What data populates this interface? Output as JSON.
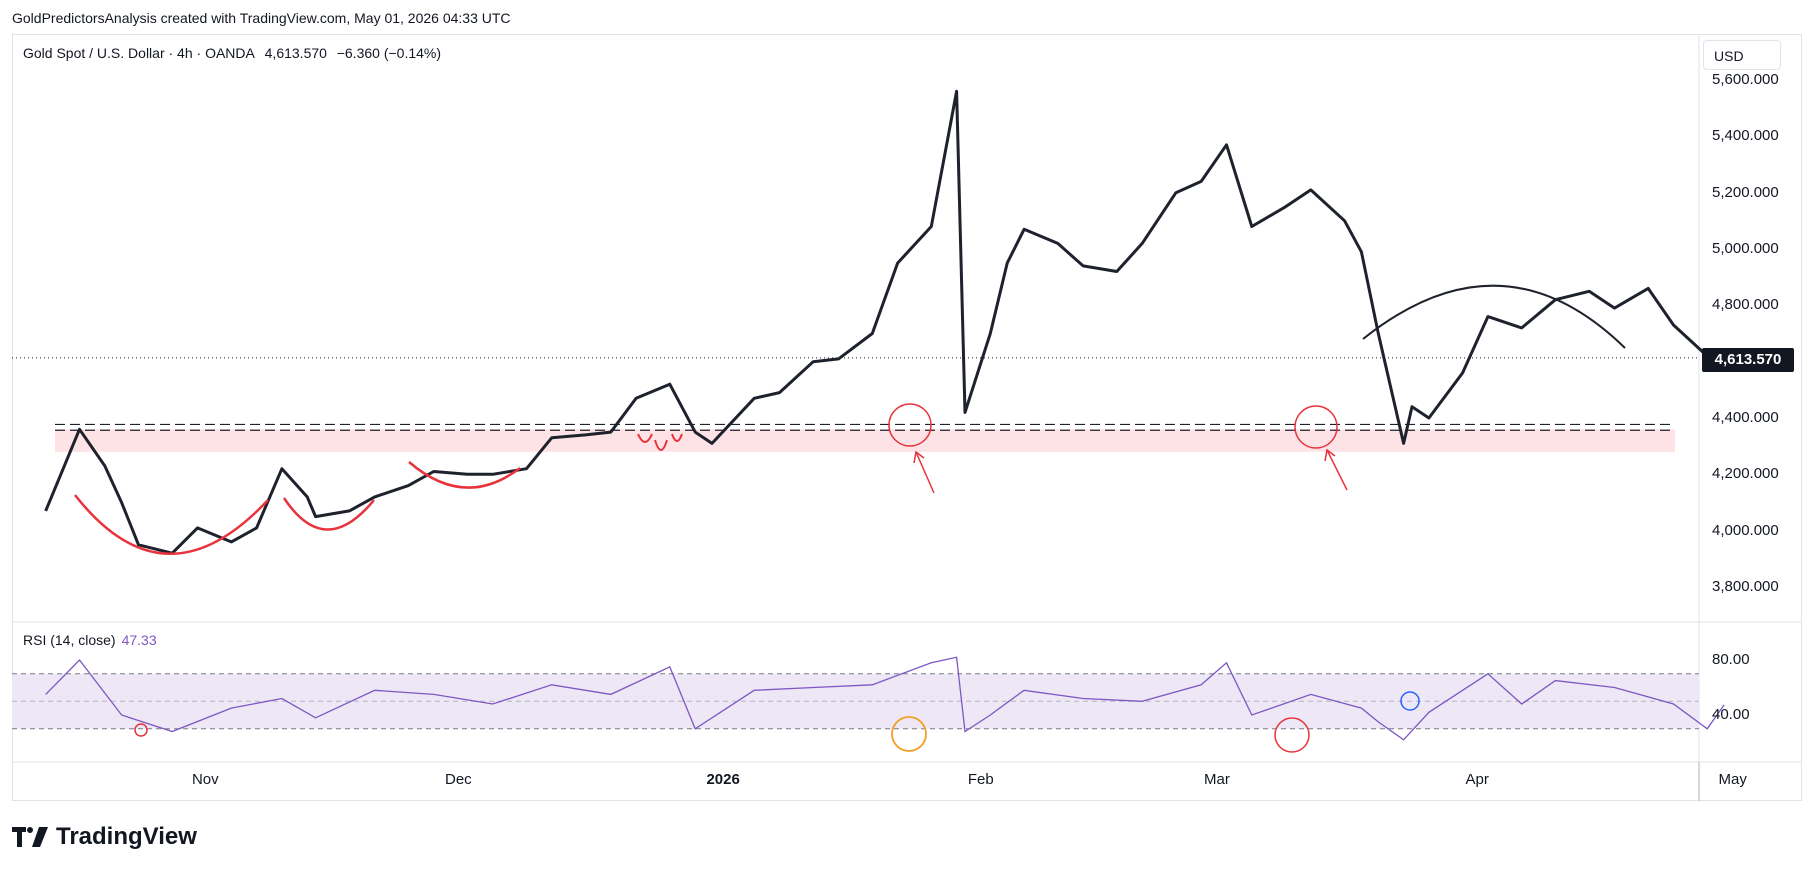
{
  "attribution": "GoldPredictorsAnalysis created with TradingView.com, May 01, 2026 04:33 UTC",
  "legend": {
    "symbol": "Gold Spot / U.S. Dollar · 4h · OANDA",
    "price": "4,613.570",
    "change": "−6.360 (−0.14%)"
  },
  "rsi_legend": {
    "label": "RSI (14, close)",
    "value": "47.33"
  },
  "currency": "USD",
  "last_price_label": "4,613.570",
  "price_axis_labels": [
    "5,600.000",
    "5,400.000",
    "5,200.000",
    "5,000.000",
    "4,800.000",
    "4,400.000",
    "4,200.000",
    "4,000.000",
    "3,800.000"
  ],
  "rsi_axis_labels": [
    "80.00",
    "40.00"
  ],
  "x_axis_labels": [
    "Nov",
    "Dec",
    "2026",
    "Feb",
    "Mar",
    "Apr",
    "May"
  ],
  "brand": "TradingView",
  "colors": {
    "price_line": "#1e222d",
    "support_zone": "#fde3e5",
    "annotation_red": "#e8333c",
    "rsi_line": "#7e57c2",
    "rsi_band": "#ede7f6",
    "orange_circle": "#f59d22",
    "blue_circle": "#2962ff"
  },
  "chart_data": [
    {
      "type": "line",
      "series": [
        {
          "x": [
            "2025-10-13",
            "2025-10-17",
            "2025-10-20",
            "2025-10-22",
            "2025-10-24",
            "2025-10-28",
            "2025-10-31",
            "2025-11-04",
            "2025-11-07",
            "2025-11-10",
            "2025-11-13",
            "2025-11-14",
            "2025-11-18",
            "2025-11-21",
            "2025-11-25",
            "2025-11-28",
            "2025-12-02",
            "2025-12-05",
            "2025-12-09",
            "2025-12-12",
            "2025-12-16",
            "2025-12-19",
            "2025-12-22",
            "2025-12-26",
            "2025-12-29",
            "2025-12-31",
            "2026-01-05",
            "2026-01-08",
            "2026-01-12",
            "2026-01-15",
            "2026-01-19",
            "2026-01-22",
            "2026-01-26",
            "2026-01-28",
            "2026-01-29",
            "2026-01-30",
            "2026-02-02",
            "2026-02-04",
            "2026-02-06",
            "2026-02-10",
            "2026-02-13",
            "2026-02-17",
            "2026-02-20",
            "2026-02-24",
            "2026-02-27",
            "2026-03-02",
            "2026-03-05",
            "2026-03-09",
            "2026-03-12",
            "2026-03-16",
            "2026-03-18",
            "2026-03-20",
            "2026-03-23",
            "2026-03-24",
            "2026-03-26",
            "2026-03-30",
            "2026-04-02",
            "2026-04-06",
            "2026-04-10",
            "2026-04-14",
            "2026-04-17",
            "2026-04-21",
            "2026-04-24",
            "2026-04-28",
            "2026-04-30"
          ],
          "y": [
            4070,
            4360,
            4230,
            4100,
            3950,
            3920,
            4010,
            3960,
            4010,
            4220,
            4120,
            4050,
            4070,
            4120,
            4160,
            4210,
            4200,
            4200,
            4220,
            4330,
            4340,
            4350,
            4470,
            4520,
            4350,
            4310,
            4470,
            4490,
            4600,
            4610,
            4700,
            4950,
            5080,
            5400,
            5560,
            4420,
            4700,
            4950,
            5070,
            5020,
            4940,
            4920,
            5020,
            5200,
            5240,
            5370,
            5080,
            5150,
            5210,
            5100,
            4990,
            4700,
            4310,
            4440,
            4400,
            4560,
            4760,
            4720,
            4820,
            4850,
            4790,
            4860,
            4730,
            4620,
            4613.57
          ]
        }
      ],
      "ylim": [
        3700,
        5650
      ],
      "yticks": [
        3800,
        4000,
        4200,
        4400,
        4600,
        4800,
        5000,
        5200,
        5400,
        5600
      ],
      "last": 4613.57,
      "resistance_lines": [
        4370,
        4360
      ],
      "support_zone": [
        4280,
        4360
      ],
      "annotations": [
        "rounded bottom arcs",
        "circled retests",
        "dome arc"
      ]
    },
    {
      "type": "line",
      "name": "RSI (14, close)",
      "series": [
        {
          "x": [
            "2025-10-13",
            "2025-10-17",
            "2025-10-22",
            "2025-10-28",
            "2025-11-04",
            "2025-11-10",
            "2025-11-14",
            "2025-11-21",
            "2025-11-28",
            "2025-12-05",
            "2025-12-12",
            "2025-12-19",
            "2025-12-26",
            "2025-12-29",
            "2026-01-05",
            "2026-01-12",
            "2026-01-19",
            "2026-01-26",
            "2026-01-29",
            "2026-01-30",
            "2026-02-02",
            "2026-02-06",
            "2026-02-13",
            "2026-02-20",
            "2026-02-27",
            "2026-03-02",
            "2026-03-05",
            "2026-03-12",
            "2026-03-18",
            "2026-03-20",
            "2026-03-23",
            "2026-03-26",
            "2026-04-02",
            "2026-04-06",
            "2026-04-10",
            "2026-04-17",
            "2026-04-24",
            "2026-04-28",
            "2026-04-30"
          ],
          "y": [
            55,
            80,
            40,
            28,
            45,
            52,
            38,
            58,
            55,
            48,
            62,
            55,
            75,
            30,
            58,
            60,
            62,
            78,
            82,
            28,
            40,
            58,
            52,
            50,
            62,
            78,
            40,
            55,
            45,
            35,
            22,
            42,
            70,
            48,
            65,
            60,
            48,
            30,
            47.33
          ]
        }
      ],
      "ylim": [
        15,
        90
      ],
      "band": [
        30,
        70
      ],
      "midline": 50,
      "yticks": [
        40,
        80
      ]
    }
  ]
}
